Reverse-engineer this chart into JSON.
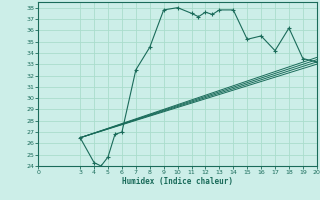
{
  "xlabel": "Humidex (Indice chaleur)",
  "bg_color": "#cceee8",
  "grid_color": "#aaddcc",
  "line_color": "#1a6b5a",
  "xlim": [
    0,
    20
  ],
  "ylim": [
    24,
    38.5
  ],
  "xticks": [
    0,
    3,
    4,
    5,
    6,
    7,
    8,
    9,
    10,
    11,
    12,
    13,
    14,
    15,
    16,
    17,
    18,
    19,
    20
  ],
  "yticks": [
    24,
    25,
    26,
    27,
    28,
    29,
    30,
    31,
    32,
    33,
    34,
    35,
    36,
    37,
    38
  ],
  "main_curve_x": [
    3,
    4,
    4.5,
    5,
    5.5,
    6,
    7,
    8,
    9,
    10,
    11,
    11.5,
    12,
    12.5,
    13,
    14,
    15,
    16,
    17,
    18,
    19,
    20
  ],
  "main_curve_y": [
    26.5,
    24.3,
    24.0,
    24.8,
    26.8,
    27.0,
    32.5,
    34.5,
    37.8,
    38.0,
    37.5,
    37.2,
    37.6,
    37.4,
    37.8,
    37.8,
    35.2,
    35.5,
    34.2,
    36.2,
    33.5,
    33.2
  ],
  "line1_x": [
    3,
    20
  ],
  "line1_y": [
    26.5,
    33.0
  ],
  "line2_x": [
    3,
    20
  ],
  "line2_y": [
    26.5,
    33.2
  ],
  "line3_x": [
    3,
    20
  ],
  "line3_y": [
    26.5,
    33.4
  ],
  "line4_x": [
    3,
    20
  ],
  "line4_y": [
    26.5,
    33.6
  ]
}
